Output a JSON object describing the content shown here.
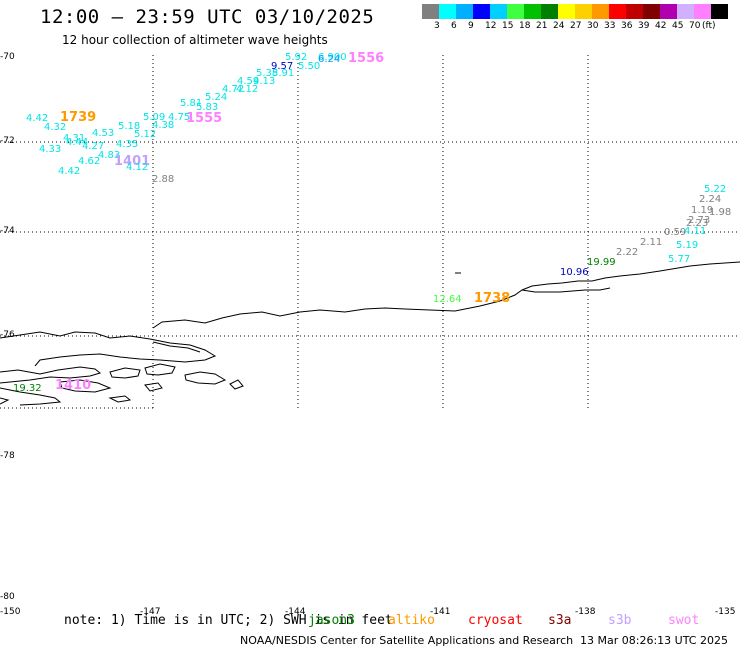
{
  "header": {
    "title": "12:00 – 23:59 UTC 03/10/2025",
    "subtitle": "12 hour collection of altimeter wave heights"
  },
  "legend": {
    "colors": [
      "#808080",
      "#00ffff",
      "#00b0ff",
      "#0000ff",
      "#00d0ff",
      "#40ff40",
      "#00c000",
      "#008000",
      "#ffff00",
      "#ffd000",
      "#ff9900",
      "#ff0000",
      "#c00000",
      "#800000",
      "#b000b0",
      "#d0b0ff",
      "#ff80ff",
      "#000000"
    ],
    "labels": [
      "3",
      "6",
      "9",
      "12",
      "15",
      "18",
      "21",
      "24",
      "27",
      "30",
      "33",
      "36",
      "39",
      "42",
      "45",
      "70",
      "(ft)"
    ]
  },
  "axes": {
    "lat_labels": [
      "-70",
      "-72",
      "-74",
      "-76",
      "-78",
      "-80"
    ],
    "lon_labels": [
      "-150",
      "-147",
      "-144",
      "-141",
      "-138",
      "-135"
    ]
  },
  "wave_labels": [
    {
      "text": "5.92",
      "color": "#00e5e5"
    },
    {
      "text": "6.900",
      "color": "#00e5e5"
    },
    {
      "text": "1556",
      "color": "#ff80ff"
    },
    {
      "text": "9.57",
      "color": "#0000c0"
    },
    {
      "text": "6.24",
      "color": "#0099ff"
    },
    {
      "text": "5.50",
      "color": "#00e5e5"
    },
    {
      "text": "5.38",
      "color": "#00e5e5"
    },
    {
      "text": "5.91",
      "color": "#00e5e5"
    },
    {
      "text": "4.59",
      "color": "#00e5e5"
    },
    {
      "text": "4.13",
      "color": "#00e5e5"
    },
    {
      "text": "4.72",
      "color": "#00e5e5"
    },
    {
      "text": "4.12",
      "color": "#00e5e5"
    },
    {
      "text": "5.24",
      "color": "#00e5e5"
    },
    {
      "text": "5.81",
      "color": "#00e5e5"
    },
    {
      "text": "5.83",
      "color": "#00e5e5"
    },
    {
      "text": "1555",
      "color": "#ff80ff"
    },
    {
      "text": "5.09",
      "color": "#00e5e5"
    },
    {
      "text": "4.75",
      "color": "#00e5e5"
    },
    {
      "text": "4.38",
      "color": "#00e5e5"
    },
    {
      "text": "4.42",
      "color": "#00e5e5"
    },
    {
      "text": "1739",
      "color": "#ff9900"
    },
    {
      "text": "4.32",
      "color": "#00e5e5"
    },
    {
      "text": "4.31",
      "color": "#00e5e5"
    },
    {
      "text": "4.53",
      "color": "#00e5e5"
    },
    {
      "text": "5.18",
      "color": "#00e5e5"
    },
    {
      "text": "5.12",
      "color": "#00e5e5"
    },
    {
      "text": "4.44",
      "color": "#00e5e5"
    },
    {
      "text": "4.35",
      "color": "#00e5e5"
    },
    {
      "text": "4.33",
      "color": "#00e5e5"
    },
    {
      "text": "4.27",
      "color": "#00e5e5"
    },
    {
      "text": "4.83",
      "color": "#00e5e5"
    },
    {
      "text": "4.62",
      "color": "#00e5e5"
    },
    {
      "text": "1401",
      "color": "#c0a0ff"
    },
    {
      "text": "4.12",
      "color": "#00e5e5"
    },
    {
      "text": "4.42",
      "color": "#00e5e5"
    },
    {
      "text": "2.88",
      "color": "#808080"
    },
    {
      "text": "5.22",
      "color": "#00e5e5"
    },
    {
      "text": "2.24",
      "color": "#808080"
    },
    {
      "text": "1.19",
      "color": "#808080"
    },
    {
      "text": "1.98",
      "color": "#808080"
    },
    {
      "text": "2.73",
      "color": "#808080"
    },
    {
      "text": "2.23",
      "color": "#808080"
    },
    {
      "text": "0.59",
      "color": "#808080"
    },
    {
      "text": "4.11",
      "color": "#00e5e5"
    },
    {
      "text": "2.11",
      "color": "#808080"
    },
    {
      "text": "5.19",
      "color": "#00e5e5"
    },
    {
      "text": "2.22",
      "color": "#808080"
    },
    {
      "text": "5.77",
      "color": "#00e5e5"
    },
    {
      "text": "19.99",
      "color": "#008000"
    },
    {
      "text": "10.96",
      "color": "#0000c0"
    },
    {
      "text": "12.64",
      "color": "#40ff40"
    },
    {
      "text": "1738",
      "color": "#ff9900"
    },
    {
      "text": "19.32",
      "color": "#008000"
    },
    {
      "text": "1410",
      "color": "#ff80ff"
    }
  ],
  "footer": {
    "note": "note:  1) Time is in UTC; 2) SWH is in feet",
    "satellites": [
      {
        "name": "jason3",
        "color": "#008000"
      },
      {
        "name": "altiko",
        "color": "#ff9900"
      },
      {
        "name": "cryosat",
        "color": "#ff0000"
      },
      {
        "name": "s3a",
        "color": "#800000"
      },
      {
        "name": "s3b",
        "color": "#c0a0ff"
      },
      {
        "name": "swot",
        "color": "#ff80ff"
      }
    ],
    "credit": "NOAA/NESDIS Center for Satellite Applications and Research",
    "timestamp": "13 Mar 08:26:13 UTC 2025"
  }
}
